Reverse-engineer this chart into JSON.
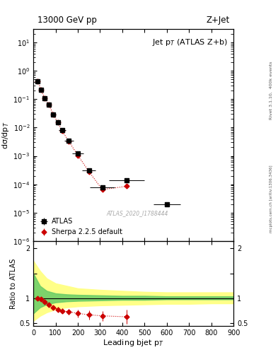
{
  "title_top": "13000 GeV pp",
  "title_right": "Z+Jet",
  "plot_title": "Jet p$_{T}$ (ATLAS Z+b)",
  "xlabel": "Leading bjet p$_{T}$",
  "ylabel_main": "dσ/dp$_{T}$",
  "ylabel_ratio": "Ratio to ATLAS",
  "watermark": "ATLAS_2020_I1788444",
  "right_label_top": "Rivet 3.1.10,  400k events",
  "right_label_bot": "mcplots.cern.ch [arXiv:1306.3436]",
  "atlas_x": [
    20,
    35,
    50,
    70,
    90,
    110,
    130,
    160,
    200,
    250,
    310,
    420,
    600
  ],
  "atlas_y": [
    0.42,
    0.22,
    0.11,
    0.065,
    0.028,
    0.015,
    0.008,
    0.0035,
    0.0012,
    0.0003,
    8e-05,
    0.00014,
    2e-05
  ],
  "atlas_xerr_lo": [
    10,
    7.5,
    7.5,
    10,
    10,
    10,
    15,
    20,
    25,
    30,
    55,
    80,
    60
  ],
  "atlas_xerr_hi": [
    7.5,
    7.5,
    10,
    10,
    10,
    10,
    15,
    20,
    25,
    30,
    55,
    80,
    60
  ],
  "atlas_yerr_lo": [
    0.02,
    0.01,
    0.005,
    0.003,
    0.001,
    0.0008,
    0.0004,
    0.0002,
    6e-05,
    2e-05,
    6e-06,
    1e-05,
    3e-06
  ],
  "atlas_yerr_hi": [
    0.02,
    0.01,
    0.005,
    0.003,
    0.001,
    0.0008,
    0.0004,
    0.0002,
    6e-05,
    2e-05,
    6e-06,
    1e-05,
    3e-06
  ],
  "sherpa_x": [
    20,
    35,
    50,
    70,
    90,
    110,
    130,
    160,
    200,
    250,
    310,
    420
  ],
  "sherpa_y": [
    0.42,
    0.22,
    0.11,
    0.065,
    0.028,
    0.015,
    0.0075,
    0.0032,
    0.00105,
    0.00028,
    6.5e-05,
    8.5e-05
  ],
  "sherpa_yerr_lo": [
    0.005,
    0.003,
    0.002,
    0.001,
    0.0005,
    0.0003,
    0.00015,
    6e-05,
    2e-05,
    6e-06,
    1.5e-06,
    8e-06
  ],
  "sherpa_yerr_hi": [
    0.005,
    0.003,
    0.002,
    0.001,
    0.0005,
    0.0003,
    0.00015,
    6e-05,
    2e-05,
    6e-06,
    1.5e-06,
    8e-06
  ],
  "ratio_x": [
    20,
    35,
    50,
    70,
    90,
    110,
    130,
    160,
    200,
    250,
    310,
    420
  ],
  "ratio_y": [
    1.0,
    0.98,
    0.93,
    0.87,
    0.82,
    0.78,
    0.75,
    0.73,
    0.7,
    0.67,
    0.65,
    0.63
  ],
  "ratio_yerr_lo": [
    0.04,
    0.04,
    0.04,
    0.04,
    0.04,
    0.05,
    0.05,
    0.06,
    0.08,
    0.09,
    0.1,
    0.14
  ],
  "ratio_yerr_hi": [
    0.04,
    0.04,
    0.04,
    0.04,
    0.04,
    0.05,
    0.05,
    0.06,
    0.08,
    0.09,
    0.1,
    0.14
  ],
  "green_band_x": [
    0,
    30,
    60,
    100,
    150,
    200,
    300,
    400,
    500,
    600,
    700,
    800,
    900
  ],
  "green_band_lo": [
    0.7,
    0.82,
    0.88,
    0.92,
    0.94,
    0.95,
    0.96,
    0.97,
    0.97,
    0.98,
    0.98,
    0.98,
    0.98
  ],
  "green_band_hi": [
    1.5,
    1.25,
    1.15,
    1.1,
    1.08,
    1.07,
    1.06,
    1.05,
    1.05,
    1.04,
    1.04,
    1.04,
    1.04
  ],
  "yellow_band_x": [
    0,
    30,
    60,
    100,
    150,
    200,
    300,
    400,
    500,
    600,
    700,
    800,
    900
  ],
  "yellow_band_lo": [
    0.55,
    0.65,
    0.72,
    0.78,
    0.82,
    0.84,
    0.86,
    0.87,
    0.88,
    0.89,
    0.89,
    0.9,
    0.9
  ],
  "yellow_band_hi": [
    1.75,
    1.55,
    1.4,
    1.3,
    1.25,
    1.2,
    1.17,
    1.15,
    1.13,
    1.12,
    1.12,
    1.12,
    1.12
  ],
  "xlim": [
    0,
    900
  ],
  "ylim_main": [
    1e-06,
    30
  ],
  "ylim_ratio": [
    0.45,
    2.15
  ],
  "color_atlas": "#000000",
  "color_sherpa": "#cc0000",
  "color_green": "#66cc66",
  "color_yellow": "#ffff88",
  "bg_color": "#ffffff"
}
